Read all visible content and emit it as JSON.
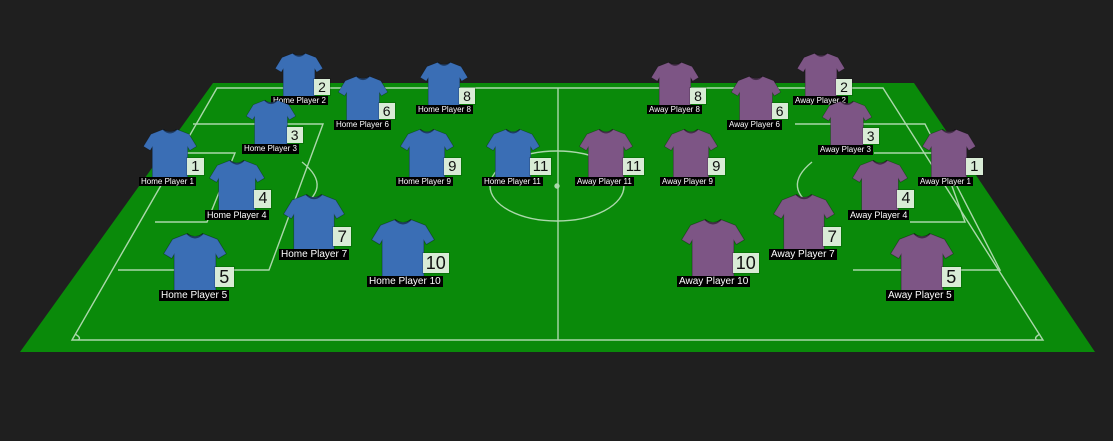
{
  "colors": {
    "background": "#1f1f1f",
    "pitch": "#0a8a0a",
    "pitch_lines": "#c8e6c8",
    "home_kit": "#3a6eb5",
    "away_kit": "#7d5585"
  },
  "icons": {
    "jersey": "jersey-icon"
  },
  "home": {
    "team": "Home",
    "players": [
      {
        "number": "1",
        "name": "Home Player 1"
      },
      {
        "number": "2",
        "name": "Home Player 2"
      },
      {
        "number": "3",
        "name": "Home Player 3"
      },
      {
        "number": "4",
        "name": "Home Player 4"
      },
      {
        "number": "5",
        "name": "Home Player 5"
      },
      {
        "number": "6",
        "name": "Home Player 6"
      },
      {
        "number": "7",
        "name": "Home Player 7"
      },
      {
        "number": "8",
        "name": "Home Player 8"
      },
      {
        "number": "9",
        "name": "Home Player 9"
      },
      {
        "number": "10",
        "name": "Home Player 10"
      },
      {
        "number": "11",
        "name": "Home Player 11"
      }
    ]
  },
  "away": {
    "team": "Away",
    "players": [
      {
        "number": "1",
        "name": "Away Player 1"
      },
      {
        "number": "2",
        "name": "Away Player 2"
      },
      {
        "number": "3",
        "name": "Away Player 3"
      },
      {
        "number": "4",
        "name": "Away Player 4"
      },
      {
        "number": "5",
        "name": "Away Player 5"
      },
      {
        "number": "6",
        "name": "Away Player 6"
      },
      {
        "number": "7",
        "name": "Away Player 7"
      },
      {
        "number": "8",
        "name": "Away Player 8"
      },
      {
        "number": "9",
        "name": "Away Player 9"
      },
      {
        "number": "10",
        "name": "Away Player 10"
      },
      {
        "number": "11",
        "name": "Away Player 11"
      }
    ]
  }
}
